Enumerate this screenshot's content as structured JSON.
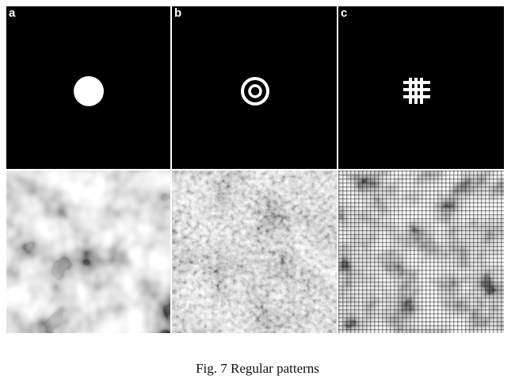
{
  "figure": {
    "panels": [
      {
        "label": "a",
        "motif": "filled-disc",
        "texture": "coarse-blotchy-noise"
      },
      {
        "label": "b",
        "motif": "concentric-rings",
        "texture": "fine-speckle-noise"
      },
      {
        "label": "c",
        "motif": "hash-grid",
        "texture": "grid-textured-noise"
      }
    ],
    "caption": "Fig. 7  Regular patterns"
  },
  "colors": {
    "background": "#000000",
    "foreground": "#ffffff"
  }
}
